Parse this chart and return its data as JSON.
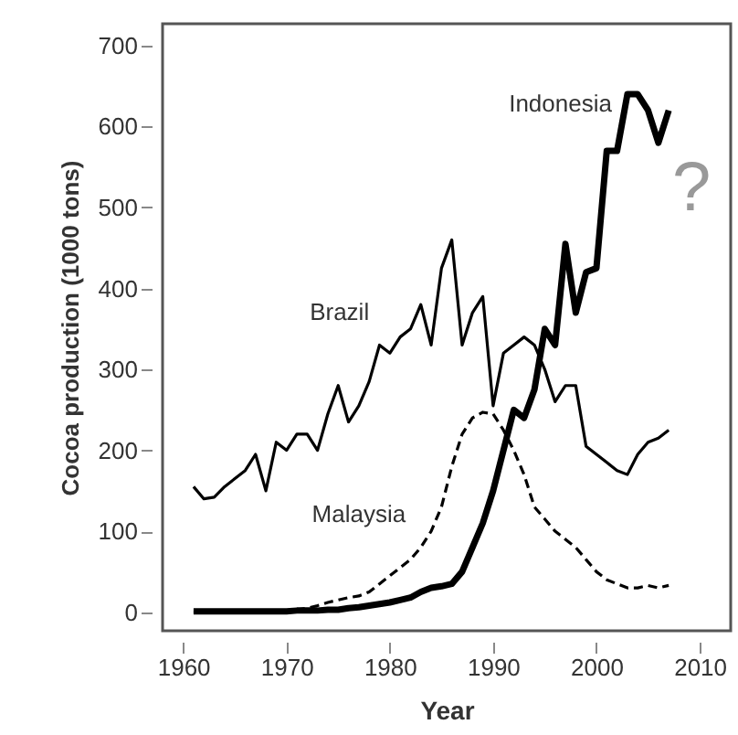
{
  "chart_data": {
    "type": "line",
    "xlabel": "Year",
    "ylabel": "Cocoa production (1000 tons)",
    "x": [
      1961,
      1962,
      1963,
      1964,
      1965,
      1966,
      1967,
      1968,
      1969,
      1970,
      1971,
      1972,
      1973,
      1974,
      1975,
      1976,
      1977,
      1978,
      1979,
      1980,
      1981,
      1982,
      1983,
      1984,
      1985,
      1986,
      1987,
      1988,
      1989,
      1990,
      1991,
      1992,
      1993,
      1994,
      1995,
      1996,
      1997,
      1998,
      1999,
      2000,
      2001,
      2002,
      2003,
      2004,
      2005,
      2006,
      2007
    ],
    "series": [
      {
        "name": "Indonesia",
        "color": "#000000",
        "line_style": "solid",
        "values": [
          1,
          1,
          1,
          1,
          1,
          1,
          1,
          1,
          1,
          1,
          2,
          2,
          2,
          3,
          3,
          5,
          6,
          8,
          10,
          12,
          15,
          18,
          25,
          30,
          32,
          35,
          50,
          80,
          110,
          150,
          200,
          250,
          240,
          275,
          350,
          330,
          455,
          370,
          420,
          425,
          570,
          570,
          640,
          640,
          620,
          580,
          620
        ]
      },
      {
        "name": "Brazil",
        "color": "#000000",
        "line_style": "solid",
        "values": [
          155,
          140,
          142,
          155,
          165,
          175,
          195,
          150,
          210,
          200,
          220,
          220,
          200,
          245,
          280,
          235,
          255,
          285,
          330,
          320,
          340,
          350,
          380,
          330,
          425,
          460,
          330,
          370,
          390,
          255,
          320,
          330,
          340,
          330,
          300,
          260,
          280,
          280,
          205,
          195,
          185,
          175,
          170,
          195,
          210,
          215,
          225
        ]
      },
      {
        "name": "Malaysia",
        "color": "#000000",
        "line_style": "dashed",
        "values": [
          0,
          0,
          0,
          0,
          0,
          1,
          1,
          1,
          2,
          2,
          3,
          5,
          8,
          12,
          15,
          18,
          20,
          25,
          35,
          45,
          55,
          65,
          80,
          100,
          130,
          180,
          220,
          240,
          247,
          245,
          225,
          200,
          170,
          130,
          115,
          100,
          90,
          80,
          65,
          50,
          40,
          35,
          30,
          30,
          33,
          30,
          33
        ]
      }
    ],
    "xlim": [
      1958,
      2013
    ],
    "xticks": [
      1960,
      1970,
      1980,
      1990,
      2000,
      2010
    ],
    "ylim": [
      -23,
      727
    ],
    "yticks": [
      0,
      100,
      200,
      300,
      400,
      500,
      600,
      700
    ],
    "annotations": [
      "?"
    ]
  }
}
